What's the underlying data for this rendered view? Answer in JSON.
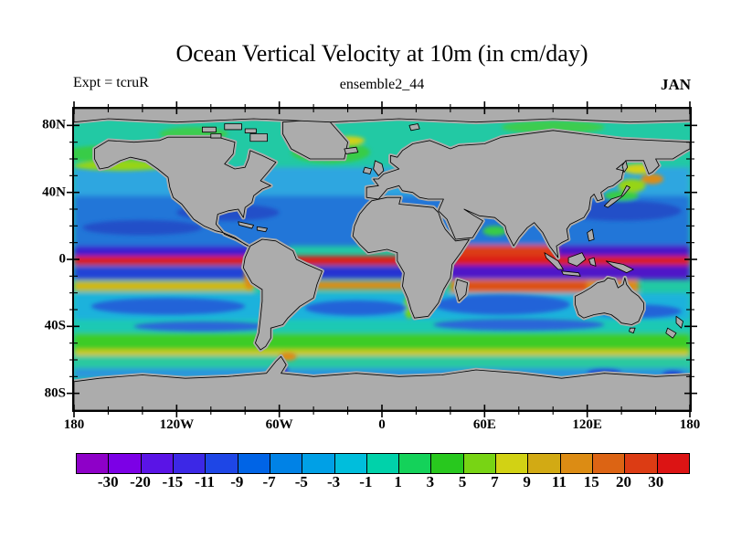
{
  "header": {
    "title": "Ocean Vertical Velocity at 10m (in cm/day)",
    "left_label": "Expt = tcruR",
    "center_label": "ensemble2_44",
    "right_label": "JAN"
  },
  "map": {
    "x_tick_labels": [
      "180",
      "120W",
      "60W",
      "0",
      "60E",
      "120E",
      "180"
    ],
    "y_tick_labels": [
      "80N",
      "40N",
      "0",
      "40S",
      "80S"
    ],
    "land_color": "#ACACAC",
    "coast_color": "#000000",
    "frame_color": "#000000"
  },
  "colorbar": {
    "labels": [
      "-30",
      "-20",
      "-15",
      "-11",
      "-9",
      "-7",
      "-5",
      "-3",
      "-1",
      "1",
      "3",
      "5",
      "7",
      "9",
      "11",
      "15",
      "20",
      "30"
    ],
    "colors": [
      "#8E00C8",
      "#7C00E6",
      "#5A14E6",
      "#3C28E6",
      "#1E46E6",
      "#0064E6",
      "#0082E6",
      "#00A0E6",
      "#00BEDC",
      "#00D2AA",
      "#14D25A",
      "#28C81E",
      "#78D414",
      "#D2D214",
      "#D2AA14",
      "#DC8C14",
      "#DC6414",
      "#DC3C14",
      "#DC1414"
    ]
  },
  "chart_data": {
    "type": "heatmap",
    "title": "Ocean Vertical Velocity at 10m (in cm/day)",
    "experiment_label": "Expt = tcruR",
    "ensemble_label": "ensemble2_44",
    "month": "JAN",
    "variable": "ocean vertical velocity at 10 m depth",
    "units": "cm/day",
    "projection": "equirectangular lat-lon, centered on 0 longitude",
    "x_range_deg": [
      -180,
      180
    ],
    "y_range_deg": [
      -90,
      90
    ],
    "x_tick_labels": [
      "180",
      "120W",
      "60W",
      "0",
      "60E",
      "120E",
      "180"
    ],
    "y_tick_labels": [
      "80N",
      "40N",
      "0",
      "40S",
      "80S"
    ],
    "contour_levels": [
      -30,
      -20,
      -15,
      -11,
      -9,
      -7,
      -5,
      -3,
      -1,
      1,
      3,
      5,
      7,
      9,
      11,
      15,
      20,
      30
    ],
    "palette": [
      "#8E00C8",
      "#7C00E6",
      "#5A14E6",
      "#3C28E6",
      "#1E46E6",
      "#0064E6",
      "#0082E6",
      "#00A0E6",
      "#00BEDC",
      "#00D2AA",
      "#14D25A",
      "#28C81E",
      "#78D414",
      "#D2D214",
      "#D2AA14",
      "#DC8C14",
      "#DC6414",
      "#DC3C14",
      "#DC1414"
    ],
    "legend_position": "horizontal colorbar below map",
    "grid": false,
    "land_mask": "gray continents with black coastlines; gray polar caps",
    "features": [
      {
        "region": "equator 2N-3S, all basins",
        "value_cm_day": "> 30 (strong upwelling, red band)"
      },
      {
        "region": "3S-13S Indian Ocean and west Pacific",
        "value_cm_day": "-30 to -20 (strong downwelling, purple band)"
      },
      {
        "region": "4N-10N and 5S-15S central/east Pacific",
        "value_cm_day": "-11 to -20 (dark blue/purple bands)"
      },
      {
        "region": "13S-21S Indian Ocean",
        "value_cm_day": "15 to 30 (orange-red band)"
      },
      {
        "region": "17S-21S east Pacific",
        "value_cm_day": "7 to 11 (yellow band)"
      },
      {
        "region": "subtropics 20N-40N and 20S-40S",
        "value_cm_day": "-3 to -9 (blue/cyan gyres)"
      },
      {
        "region": "45S-55S Southern Ocean",
        "value_cm_day": "3 to 7 (green circumpolar band)"
      },
      {
        "region": "~56S circumpolar stripe",
        "value_cm_day": "7 to 11 (yellow stripe)"
      },
      {
        "region": "Arctic and subpolar oceans north of 55N",
        "value_cm_day": "-1 to 3 (teal/green)"
      },
      {
        "region": "Antarctic coastal band 60S-68S",
        "value_cm_day": "-1 to -5 (cyan/blue)"
      }
    ]
  }
}
